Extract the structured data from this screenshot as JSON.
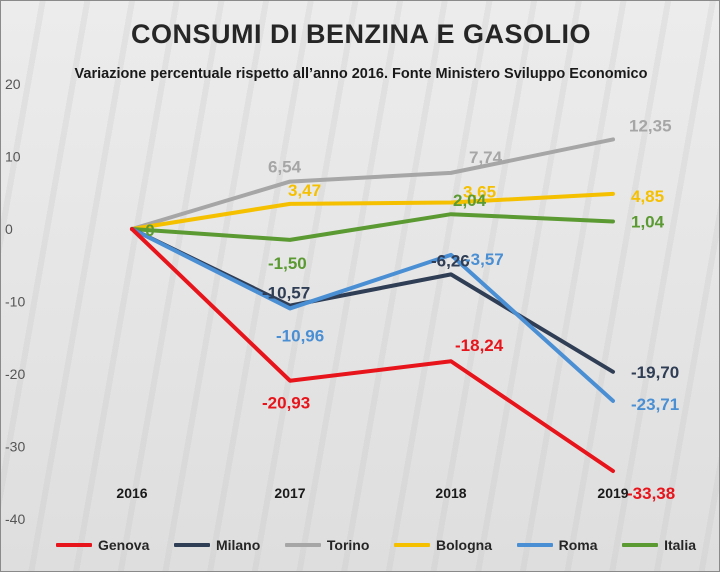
{
  "chart_data": {
    "type": "line",
    "title": "CONSUMI DI BENZINA E GASOLIO",
    "subtitle": "Variazione percentuale rispetto all’anno 2016. Fonte Ministero Sviluppo Economico",
    "categories": [
      "2016",
      "2017",
      "2018",
      "2019"
    ],
    "ylim": [
      -40,
      20
    ],
    "yticks": [
      20,
      10,
      0,
      -10,
      -20,
      -30,
      -40
    ],
    "grid": false,
    "legend_position": "bottom",
    "series": [
      {
        "name": "Genova",
        "color": "#e8141b",
        "values": [
          0,
          -20.93,
          -18.24,
          -33.38
        ],
        "labels": [
          "",
          "-20,93",
          "-18,24",
          "-33,38"
        ]
      },
      {
        "name": "Milano",
        "color": "#2f3d55",
        "values": [
          0,
          -10.57,
          -6.26,
          -19.7
        ],
        "labels": [
          "",
          "-10,57",
          "-6,26",
          "-19,70"
        ]
      },
      {
        "name": "Torino",
        "color": "#a6a6a6",
        "values": [
          0,
          6.54,
          7.74,
          12.35
        ],
        "labels": [
          "",
          "6,54",
          "7,74",
          "12,35"
        ]
      },
      {
        "name": "Bologna",
        "color": "#f5c000",
        "values": [
          0,
          3.47,
          3.65,
          4.85
        ],
        "labels": [
          "",
          "3,47",
          "3,65",
          "4,85"
        ]
      },
      {
        "name": "Roma",
        "color": "#4a8fd4",
        "values": [
          0,
          -10.96,
          -3.57,
          -23.71
        ],
        "labels": [
          "",
          "-10,96",
          "-3,57",
          "-23,71"
        ]
      },
      {
        "name": "Italia",
        "color": "#5b9a32",
        "values": [
          0,
          -1.5,
          2.04,
          1.04
        ],
        "labels": [
          "0",
          "-1,50",
          "2,04",
          "1,04"
        ]
      }
    ]
  }
}
